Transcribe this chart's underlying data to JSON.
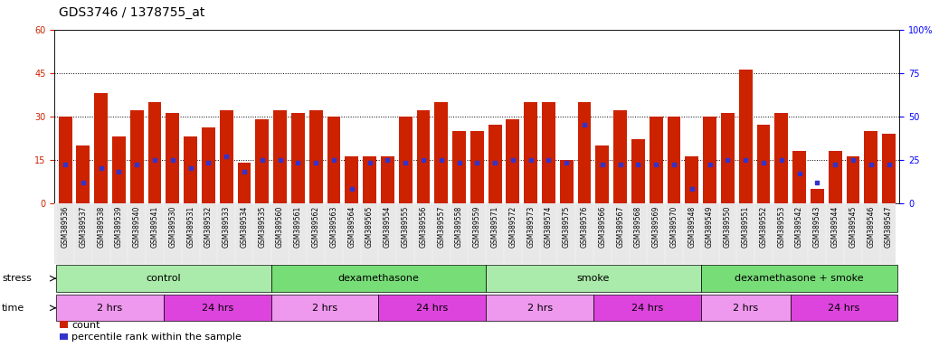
{
  "title": "GDS3746 / 1378755_at",
  "samples": [
    "GSM389536",
    "GSM389537",
    "GSM389538",
    "GSM389539",
    "GSM389540",
    "GSM389541",
    "GSM389530",
    "GSM389531",
    "GSM389532",
    "GSM389533",
    "GSM389534",
    "GSM389535",
    "GSM389560",
    "GSM389561",
    "GSM389562",
    "GSM389563",
    "GSM389564",
    "GSM389565",
    "GSM389554",
    "GSM389555",
    "GSM389556",
    "GSM389557",
    "GSM389558",
    "GSM389559",
    "GSM389571",
    "GSM389572",
    "GSM389573",
    "GSM389574",
    "GSM389575",
    "GSM389576",
    "GSM389566",
    "GSM389567",
    "GSM389568",
    "GSM389569",
    "GSM389570",
    "GSM389548",
    "GSM389549",
    "GSM389550",
    "GSM389551",
    "GSM389552",
    "GSM389553",
    "GSM389542",
    "GSM389543",
    "GSM389544",
    "GSM389545",
    "GSM389546",
    "GSM389547"
  ],
  "counts": [
    30,
    20,
    38,
    23,
    32,
    35,
    31,
    23,
    26,
    32,
    14,
    29,
    32,
    31,
    32,
    30,
    16,
    16,
    16,
    30,
    32,
    35,
    25,
    25,
    27,
    29,
    35,
    35,
    15,
    35,
    20,
    32,
    22,
    30,
    30,
    16,
    30,
    31,
    46,
    27,
    31,
    18,
    5,
    18,
    16,
    25,
    24
  ],
  "percentile_ranks_pct": [
    22,
    12,
    20,
    18,
    22,
    25,
    25,
    20,
    23,
    27,
    18,
    25,
    25,
    23,
    23,
    25,
    8,
    23,
    25,
    23,
    25,
    25,
    23,
    23,
    23,
    25,
    25,
    25,
    23,
    45,
    22,
    22,
    22,
    22,
    22,
    8,
    22,
    25,
    25,
    23,
    25,
    17,
    12,
    22,
    25,
    22,
    22
  ],
  "bar_color": "#CC2200",
  "marker_color": "#3333CC",
  "ylim_left": [
    0,
    60
  ],
  "ylim_right": [
    0,
    100
  ],
  "yticks_left": [
    0,
    15,
    30,
    45,
    60
  ],
  "yticks_right": [
    0,
    25,
    50,
    75,
    100
  ],
  "gridlines_at": [
    15,
    30,
    45
  ],
  "stress_groups": [
    {
      "label": "control",
      "start": 0,
      "end": 12,
      "color": "#AAEAAA"
    },
    {
      "label": "dexamethasone",
      "start": 12,
      "end": 24,
      "color": "#77DD77"
    },
    {
      "label": "smoke",
      "start": 24,
      "end": 36,
      "color": "#AAEAAA"
    },
    {
      "label": "dexamethasone + smoke",
      "start": 36,
      "end": 47,
      "color": "#77DD77"
    }
  ],
  "time_groups": [
    {
      "label": "2 hrs",
      "start": 0,
      "end": 6,
      "color": "#EE99EE"
    },
    {
      "label": "24 hrs",
      "start": 6,
      "end": 12,
      "color": "#DD44DD"
    },
    {
      "label": "2 hrs",
      "start": 12,
      "end": 18,
      "color": "#EE99EE"
    },
    {
      "label": "24 hrs",
      "start": 18,
      "end": 24,
      "color": "#DD44DD"
    },
    {
      "label": "2 hrs",
      "start": 24,
      "end": 30,
      "color": "#EE99EE"
    },
    {
      "label": "24 hrs",
      "start": 30,
      "end": 36,
      "color": "#DD44DD"
    },
    {
      "label": "2 hrs",
      "start": 36,
      "end": 41,
      "color": "#EE99EE"
    },
    {
      "label": "24 hrs",
      "start": 41,
      "end": 47,
      "color": "#DD44DD"
    }
  ],
  "bg_color": "#FFFFFF",
  "title_fontsize": 10,
  "tick_fontsize": 7,
  "bar_label_fontsize": 5.5,
  "group_label_fontsize": 8,
  "legend_fontsize": 8,
  "stress_label": "stress",
  "time_label": "time"
}
